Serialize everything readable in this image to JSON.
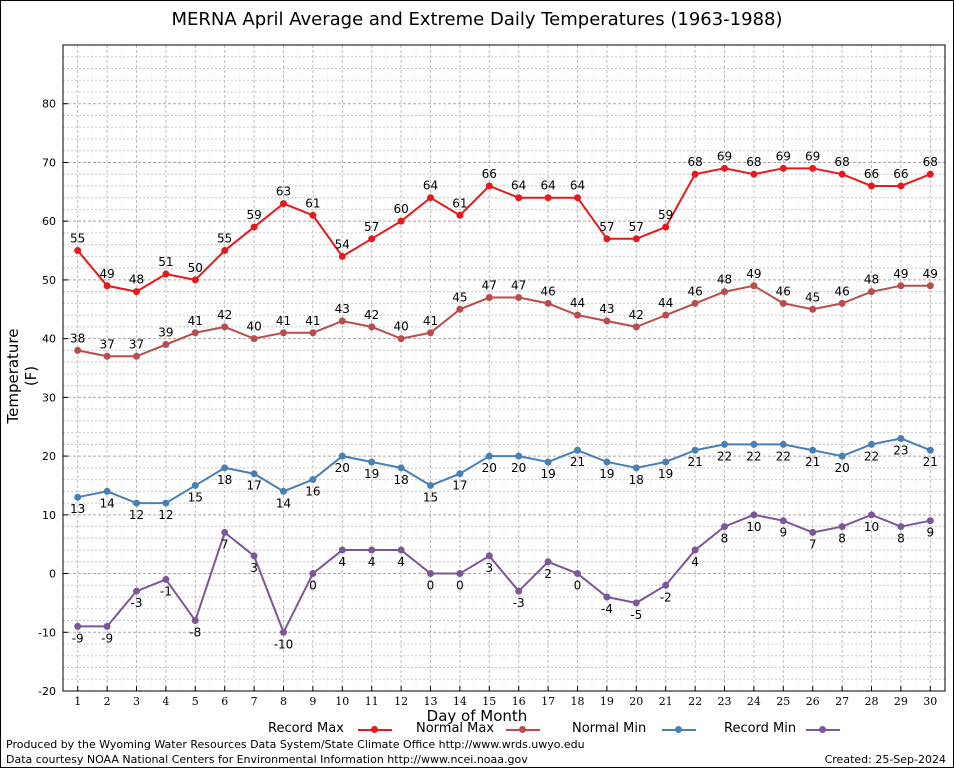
{
  "footer": {
    "produced": "Produced by the Wyoming Water Resources Data System/State Climate Office http://www.wrds.uwyo.edu",
    "courtesy": "Data courtesy NOAA National Centers for Environmental Information http://www.ncei.noaa.gov",
    "created": "Created:  25-Sep-2024"
  },
  "chart_data": {
    "type": "line",
    "title": "MERNA April Average and Extreme Daily Temperatures (1963-1988)",
    "xlabel": "Day of Month",
    "ylabel": "Temperature (F)",
    "x": [
      1,
      2,
      3,
      4,
      5,
      6,
      7,
      8,
      9,
      10,
      11,
      12,
      13,
      14,
      15,
      16,
      17,
      18,
      19,
      20,
      21,
      22,
      23,
      24,
      25,
      26,
      27,
      28,
      29,
      30
    ],
    "xlim": [
      0.5,
      30.5
    ],
    "ylim": [
      -20,
      90
    ],
    "yticks": [
      -20,
      -10,
      0,
      10,
      20,
      30,
      40,
      50,
      60,
      70,
      80
    ],
    "grid": true,
    "legend_position": "bottom",
    "series": [
      {
        "name": "Record Max",
        "color": "#e8191c",
        "label_pos": "above",
        "values": [
          55,
          49,
          48,
          51,
          50,
          55,
          59,
          63,
          61,
          54,
          57,
          60,
          64,
          61,
          66,
          64,
          64,
          64,
          57,
          57,
          59,
          68,
          69,
          68,
          69,
          69,
          68,
          66,
          66,
          68
        ]
      },
      {
        "name": "Normal Max",
        "color": "#b94d4d",
        "label_pos": "above",
        "values": [
          38,
          37,
          37,
          39,
          41,
          42,
          40,
          41,
          41,
          43,
          42,
          40,
          41,
          45,
          47,
          47,
          46,
          44,
          43,
          42,
          44,
          46,
          48,
          49,
          46,
          45,
          46,
          48,
          49,
          49
        ]
      },
      {
        "name": "Normal Min",
        "color": "#4a7fb5",
        "label_pos": "below",
        "values": [
          13,
          14,
          12,
          12,
          15,
          18,
          17,
          14,
          16,
          20,
          19,
          18,
          15,
          17,
          20,
          20,
          19,
          21,
          19,
          18,
          19,
          21,
          22,
          22,
          22,
          21,
          20,
          22,
          23,
          21
        ]
      },
      {
        "name": "Record Min",
        "color": "#7b5799",
        "label_pos": "below",
        "values": [
          -9,
          -9,
          -3,
          -1,
          -8,
          7,
          3,
          -10,
          0,
          4,
          4,
          4,
          0,
          0,
          3,
          -3,
          2,
          0,
          -4,
          -5,
          -2,
          4,
          8,
          10,
          9,
          7,
          8,
          10,
          8,
          9
        ]
      }
    ]
  }
}
